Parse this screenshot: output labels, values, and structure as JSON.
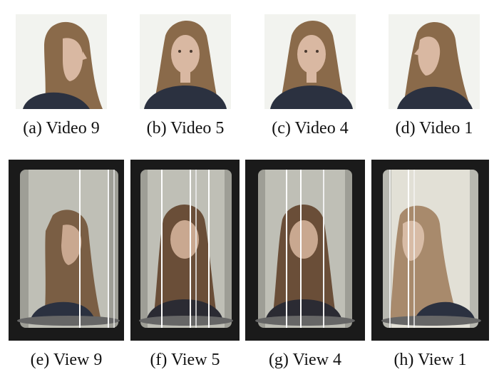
{
  "top_row": {
    "panels": [
      {
        "label": "(a)",
        "caption": "Video 9",
        "view": "right-profile"
      },
      {
        "label": "(b)",
        "caption": "Video 5",
        "view": "front"
      },
      {
        "label": "(c)",
        "caption": "Video 4",
        "view": "front"
      },
      {
        "label": "(d)",
        "caption": "Video 1",
        "view": "left-three-quarter"
      }
    ]
  },
  "bottom_row": {
    "panels": [
      {
        "label": "(e)",
        "caption": "View 9",
        "view": "right-profile"
      },
      {
        "label": "(f)",
        "caption": "View 5",
        "view": "front"
      },
      {
        "label": "(g)",
        "caption": "View 4",
        "view": "front"
      },
      {
        "label": "(h)",
        "caption": "View 1",
        "view": "left-three-quarter"
      }
    ]
  },
  "colors": {
    "hair": "#8a6a4a",
    "skin": "#d9b8a2",
    "shirt": "#2b3140",
    "display_bg": "#1a1a1a",
    "cylinder": "#bfbfb6"
  }
}
